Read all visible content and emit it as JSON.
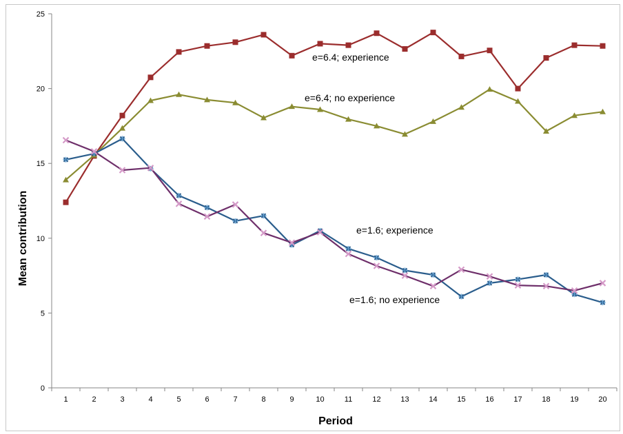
{
  "chart_data": {
    "type": "line",
    "xlabel": "Period",
    "ylabel": "Mean contribution",
    "ylim": [
      0,
      25
    ],
    "yticks": [
      0,
      5,
      10,
      15,
      20,
      25
    ],
    "x": [
      1,
      2,
      3,
      4,
      5,
      6,
      7,
      8,
      9,
      10,
      11,
      12,
      13,
      14,
      15,
      16,
      17,
      18,
      19,
      20
    ],
    "grid": false,
    "legend": "none",
    "series": [
      {
        "color": "#9b2d2d",
        "marker": "square",
        "values": [
          12.4,
          15.5,
          18.2,
          20.75,
          22.45,
          22.85,
          23.1,
          23.6,
          22.2,
          23.0,
          22.9,
          23.7,
          22.65,
          23.75,
          22.15,
          22.55,
          20.0,
          22.05,
          22.9,
          22.85
        ]
      },
      {
        "color": "#8a8c32",
        "marker": "triangle",
        "values": [
          13.9,
          15.55,
          17.35,
          19.2,
          19.6,
          19.25,
          19.05,
          18.05,
          18.8,
          18.6,
          17.95,
          17.5,
          16.95,
          17.8,
          18.75,
          19.95,
          19.15,
          17.15,
          18.2,
          18.45
        ]
      },
      {
        "color": "#2a5d8c",
        "marker": "star",
        "values": [
          15.25,
          15.65,
          16.65,
          14.65,
          12.85,
          12.05,
          11.15,
          11.5,
          9.55,
          10.5,
          9.3,
          8.7,
          7.85,
          7.55,
          6.1,
          7.0,
          7.25,
          7.55,
          6.25,
          5.7
        ]
      },
      {
        "color": "#6e2f6a",
        "marker": "x",
        "values": [
          16.55,
          15.8,
          14.55,
          14.7,
          12.3,
          11.45,
          12.25,
          10.35,
          9.7,
          10.4,
          8.95,
          8.15,
          7.5,
          6.8,
          7.9,
          7.45,
          6.85,
          6.8,
          6.5,
          7.0
        ]
      }
    ],
    "annotations": [
      {
        "text": "e=6.4; experience"
      },
      {
        "text": "e=6.4; no experience"
      },
      {
        "text": "e=1.6; experience"
      },
      {
        "text": "e=1.6; no experience"
      }
    ]
  }
}
